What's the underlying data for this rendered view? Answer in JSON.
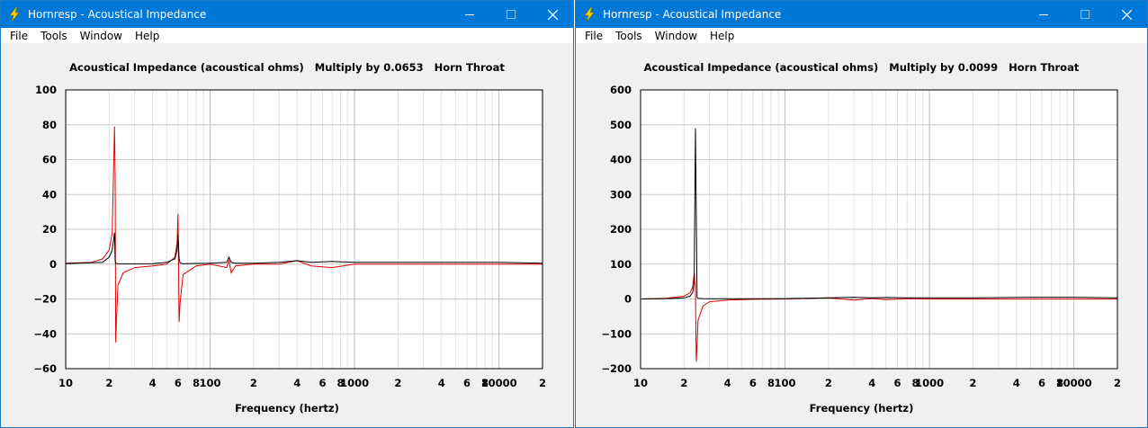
{
  "windows": [
    {
      "title": "Hornresp - Acoustical Impedance",
      "menu": [
        "File",
        "Tools",
        "Window",
        "Help"
      ],
      "chart_title": {
        "quantity": "Acoustical Impedance (acoustical ohms)",
        "multiply": "Multiply by 0.0653",
        "location": "Horn Throat"
      },
      "xlabel": "Frequency (hertz)",
      "yticks": [
        "100",
        "80",
        "60",
        "40",
        "20",
        "0",
        "−20",
        "−40",
        "−60"
      ],
      "xticks": [
        "10",
        "2",
        "4",
        "6",
        "8",
        "100",
        "2",
        "4",
        "6",
        "8",
        "1000",
        "2",
        "4",
        "6",
        "8",
        "10000",
        "2"
      ]
    },
    {
      "title": "Hornresp - Acoustical Impedance",
      "menu": [
        "File",
        "Tools",
        "Window",
        "Help"
      ],
      "chart_title": {
        "quantity": "Acoustical Impedance (acoustical ohms)",
        "multiply": "Multiply by 0.0099",
        "location": "Horn Throat"
      },
      "xlabel": "Frequency (hertz)",
      "yticks": [
        "600",
        "500",
        "400",
        "300",
        "200",
        "100",
        "0",
        "−100",
        "−200"
      ],
      "xticks": [
        "10",
        "2",
        "4",
        "6",
        "8",
        "100",
        "2",
        "4",
        "6",
        "8",
        "1000",
        "2",
        "4",
        "6",
        "8",
        "10000",
        "2"
      ]
    }
  ],
  "chart_data": [
    {
      "type": "line",
      "xscale": "log",
      "xlim": [
        10,
        20000
      ],
      "ylim": [
        -60,
        100
      ],
      "grid": true,
      "colors": {
        "resistance": "#000000",
        "reactance": "#e00000"
      },
      "series": [
        {
          "x": [
            10,
            18,
            20,
            21,
            21.8,
            22,
            22.2,
            23,
            25,
            30,
            40,
            50,
            57,
            59,
            60,
            61,
            62,
            65,
            80,
            100,
            130,
            135,
            140,
            150,
            200,
            300,
            400,
            500,
            700,
            1000,
            2000,
            5000,
            10000,
            20000
          ],
          "y": [
            0.3,
            1,
            4,
            8,
            18,
            2,
            0.5,
            0.3,
            0.2,
            0.2,
            0.3,
            1,
            3,
            8,
            17,
            3,
            0.6,
            0.3,
            0.4,
            0.5,
            1,
            4,
            1,
            0.5,
            0.5,
            1,
            2,
            1,
            1.5,
            1,
            1,
            1,
            1,
            0.5
          ]
        },
        {
          "x": [
            10,
            15,
            18,
            20,
            21,
            21.8,
            22,
            22.2,
            22.5,
            23,
            25,
            30,
            40,
            50,
            57,
            59,
            60,
            61,
            62,
            65,
            80,
            100,
            130,
            135,
            140,
            150,
            200,
            300,
            400,
            500,
            700,
            1000,
            2000,
            5000,
            10000,
            20000
          ],
          "y": [
            0.5,
            1,
            3,
            8,
            18,
            79,
            50,
            -45,
            -32,
            -12,
            -5,
            -2,
            -1,
            0,
            4,
            12,
            29,
            -33,
            -22,
            -6,
            -1,
            0,
            -2,
            2,
            -5,
            -1,
            0,
            0,
            2,
            -1,
            -2,
            0,
            0,
            0,
            0,
            0
          ]
        }
      ]
    },
    {
      "type": "line",
      "xscale": "log",
      "xlim": [
        10,
        20000
      ],
      "ylim": [
        -200,
        600
      ],
      "grid": true,
      "colors": {
        "resistance": "#000000",
        "reactance": "#e00000"
      },
      "series": [
        {
          "x": [
            10,
            15,
            20,
            22,
            23,
            23.5,
            24,
            24.3,
            24.6,
            25,
            27,
            30,
            40,
            60,
            100,
            200,
            300,
            400,
            500,
            700,
            1000,
            2000,
            5000,
            10000,
            20000
          ],
          "y": [
            0,
            1,
            3,
            8,
            20,
            60,
            490,
            250,
            5,
            2,
            1,
            0.5,
            0.5,
            0.5,
            1,
            3,
            5,
            3,
            4,
            3,
            3,
            3,
            5,
            5,
            3
          ]
        },
        {
          "x": [
            10,
            15,
            20,
            22,
            23,
            23.5,
            24,
            24.3,
            24.6,
            25,
            27,
            30,
            40,
            60,
            100,
            200,
            300,
            400,
            500,
            700,
            1000,
            2000,
            5000,
            10000,
            20000
          ],
          "y": [
            0,
            2,
            8,
            18,
            35,
            75,
            20,
            -180,
            -130,
            -60,
            -20,
            -8,
            -3,
            -1,
            0,
            3,
            -3,
            2,
            -2,
            1,
            0,
            0,
            0,
            0,
            0
          ]
        }
      ]
    }
  ]
}
